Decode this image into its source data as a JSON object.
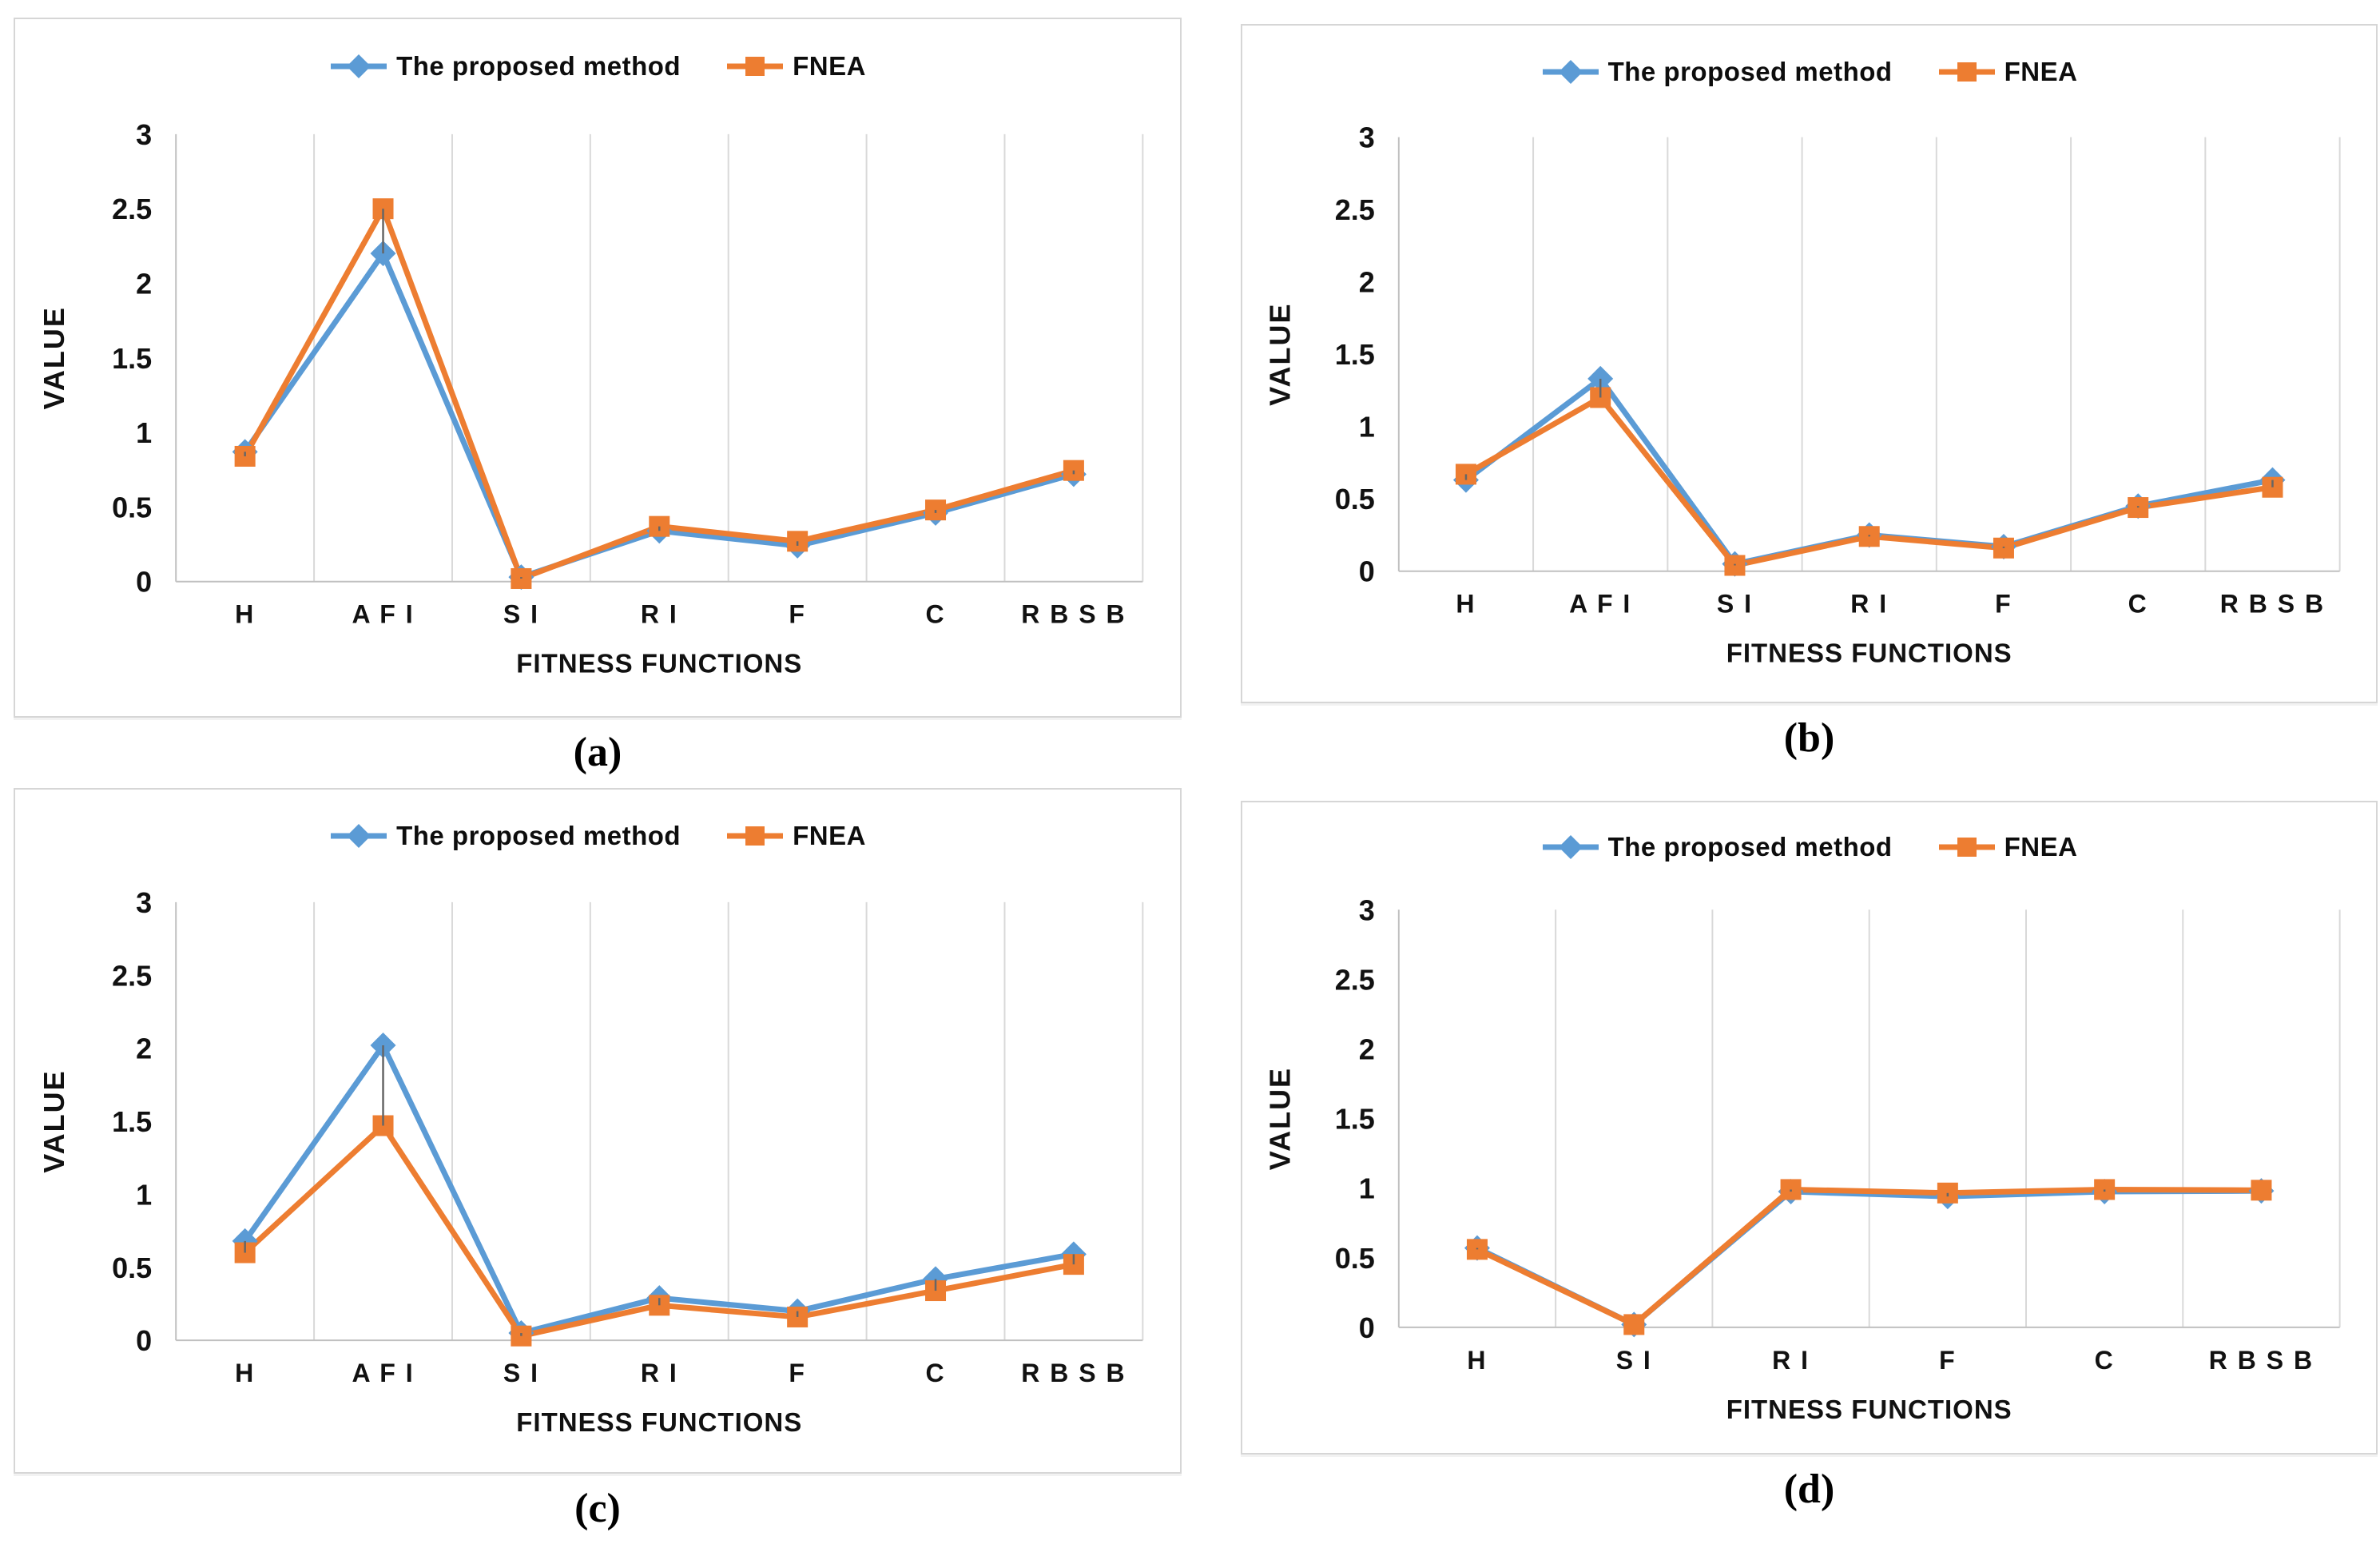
{
  "figure": {
    "description": "Four line charts comparing segmentation quality values of two methods over fitness functions",
    "panel_captions": [
      "(a)",
      "(b)",
      "(c)",
      "(d)"
    ]
  },
  "colors": {
    "proposed_blue": "#5B9BD5",
    "fnea_orange": "#ED7D31",
    "grid": "#D9D9D9",
    "axis": "#C0C0C0",
    "high_low": "#666666",
    "text": "#111111",
    "panel_border": "#D6D6D6"
  },
  "chart_data": [
    {
      "type": "line",
      "caption": "(a)",
      "xlabel": "FITNESS FUNCTIONS",
      "ylabel": "VALUE",
      "categories": [
        "H",
        "A F I",
        "S I",
        "R I",
        "F",
        "C",
        "R B S B"
      ],
      "ylim": [
        0,
        3
      ],
      "y_ticks": [
        "0",
        "0.5",
        "1",
        "1.5",
        "2",
        "2.5",
        "3"
      ],
      "grid": "vertical-between-categories",
      "legend_position": "top-center",
      "high_low_lines": true,
      "series": [
        {
          "name": "The proposed method",
          "color": "#5B9BD5",
          "marker": "diamond",
          "values": [
            0.87,
            2.2,
            0.03,
            0.34,
            0.24,
            0.46,
            0.72
          ]
        },
        {
          "name": "FNEA",
          "color": "#ED7D31",
          "marker": "square",
          "values": [
            0.84,
            2.5,
            0.02,
            0.37,
            0.27,
            0.48,
            0.745
          ]
        }
      ]
    },
    {
      "type": "line",
      "caption": "(b)",
      "xlabel": "FITNESS FUNCTIONS",
      "ylabel": "VALUE",
      "categories": [
        "H",
        "A F I",
        "S I",
        "R I",
        "F",
        "C",
        "R B S B"
      ],
      "ylim": [
        0,
        3
      ],
      "y_ticks": [
        "0",
        "0.5",
        "1",
        "1.5",
        "2",
        "2.5",
        "3"
      ],
      "grid": "vertical-between-categories",
      "legend_position": "top-center",
      "high_low_lines": true,
      "series": [
        {
          "name": "The proposed method",
          "color": "#5B9BD5",
          "marker": "diamond",
          "values": [
            0.63,
            1.33,
            0.05,
            0.25,
            0.17,
            0.45,
            0.63
          ]
        },
        {
          "name": "FNEA",
          "color": "#ED7D31",
          "marker": "square",
          "values": [
            0.67,
            1.2,
            0.04,
            0.24,
            0.16,
            0.44,
            0.58
          ]
        }
      ]
    },
    {
      "type": "line",
      "caption": "(c)",
      "xlabel": "FITNESS FUNCTIONS",
      "ylabel": "VALUE",
      "categories": [
        "H",
        "A F I",
        "S I",
        "R I",
        "F",
        "C",
        "R B S B"
      ],
      "ylim": [
        0,
        3
      ],
      "y_ticks": [
        "0",
        "0.5",
        "1",
        "1.5",
        "2",
        "2.5",
        "3"
      ],
      "grid": "vertical-between-categories",
      "legend_position": "top-center",
      "high_low_lines": true,
      "series": [
        {
          "name": "The proposed method",
          "color": "#5B9BD5",
          "marker": "diamond",
          "values": [
            0.68,
            2.02,
            0.05,
            0.29,
            0.2,
            0.42,
            0.59
          ]
        },
        {
          "name": "FNEA",
          "color": "#ED7D31",
          "marker": "square",
          "values": [
            0.6,
            1.47,
            0.03,
            0.24,
            0.16,
            0.34,
            0.52
          ]
        }
      ]
    },
    {
      "type": "line",
      "caption": "(d)",
      "xlabel": "FITNESS FUNCTIONS",
      "ylabel": "VALUE",
      "categories": [
        "H",
        "S I",
        "R I",
        "F",
        "C",
        "R B S B"
      ],
      "ylim": [
        0,
        3
      ],
      "y_ticks": [
        "0",
        "0.5",
        "1",
        "1.5",
        "2",
        "2.5",
        "3"
      ],
      "grid": "vertical-between-categories",
      "legend_position": "top-center",
      "high_low_lines": true,
      "series": [
        {
          "name": "The proposed method",
          "color": "#5B9BD5",
          "marker": "diamond",
          "values": [
            0.57,
            0.02,
            0.975,
            0.94,
            0.975,
            0.98
          ]
        },
        {
          "name": "FNEA",
          "color": "#ED7D31",
          "marker": "square",
          "values": [
            0.56,
            0.02,
            0.99,
            0.965,
            0.99,
            0.985
          ]
        }
      ]
    }
  ]
}
